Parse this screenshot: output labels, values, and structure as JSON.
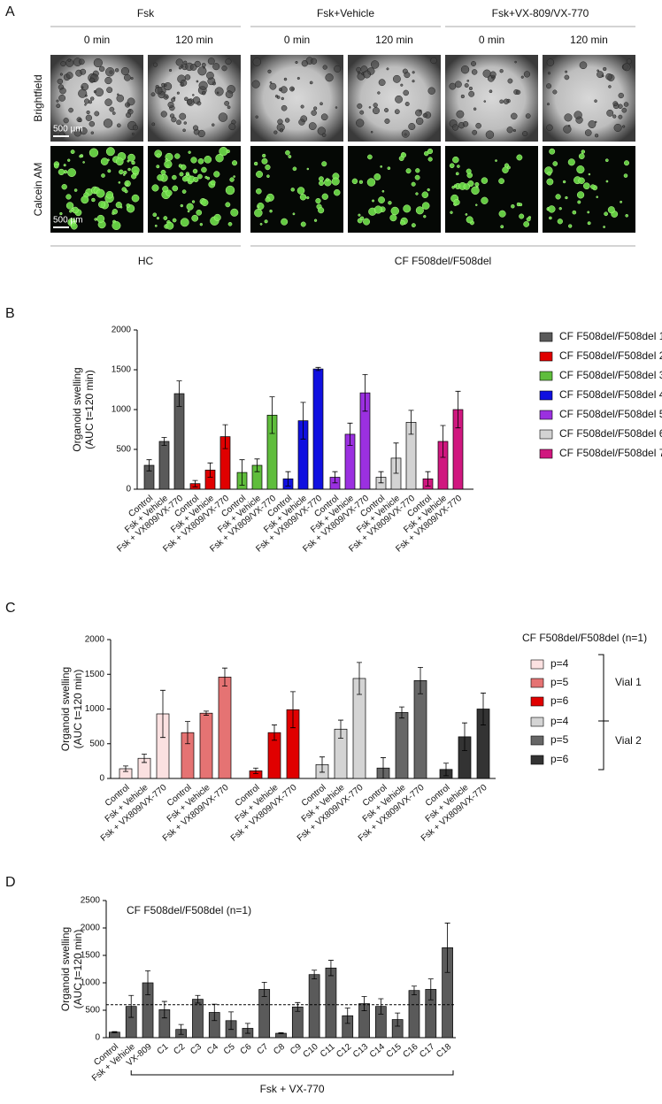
{
  "panel_a": {
    "panel": "A",
    "conditions": [
      "Fsk",
      "Fsk+Vehicle",
      "Fsk+VX-809/VX-770"
    ],
    "timepoints": [
      "0 min",
      "120 min"
    ],
    "rows": [
      "Brightfield",
      "Calcein AM"
    ],
    "scale_bar": "500 µm",
    "groups": [
      "HC",
      "CF F508del/F508del"
    ]
  },
  "chart_data": [
    {
      "type": "bar",
      "panel": "B",
      "ylabel": [
        "Organoid swelling",
        "(AUC t=120 min)"
      ],
      "categories": [
        "Control",
        "Fsk + Vehicle",
        "Fsk + VX809/VX-770"
      ],
      "series": [
        {
          "name": "CF F508del/F508del 1",
          "color": "#5a5a5a",
          "values": [
            300,
            600,
            1200
          ],
          "errors": [
            70,
            50,
            160
          ]
        },
        {
          "name": "CF F508del/F508del 2",
          "color": "#e00000",
          "values": [
            70,
            240,
            660
          ],
          "errors": [
            40,
            90,
            150
          ]
        },
        {
          "name": "CF F508del/F508del 3",
          "color": "#5fbd3c",
          "values": [
            210,
            300,
            930
          ],
          "errors": [
            160,
            80,
            230
          ]
        },
        {
          "name": "CF F508del/F508del 4",
          "color": "#1010e0",
          "values": [
            130,
            860,
            1510
          ],
          "errors": [
            90,
            230,
            20
          ]
        },
        {
          "name": "CF F508del/F508del 5",
          "color": "#9b30e0",
          "values": [
            150,
            690,
            1210
          ],
          "errors": [
            70,
            140,
            230
          ]
        },
        {
          "name": "CF F508del/F508del 6",
          "color": "#d3d3d3",
          "values": [
            150,
            390,
            840
          ],
          "errors": [
            70,
            190,
            150
          ]
        },
        {
          "name": "CF F508del/F508del 7",
          "color": "#d0177f",
          "values": [
            130,
            600,
            1000
          ],
          "errors": [
            90,
            200,
            230
          ]
        }
      ],
      "ylim": [
        0,
        2000
      ],
      "yticks": [
        0,
        500,
        1000,
        1500,
        2000
      ],
      "legend": "right"
    },
    {
      "type": "bar",
      "panel": "C",
      "ylabel": [
        "Organoid swelling",
        "(AUC t=120 min)"
      ],
      "categories": [
        "Control",
        "Fsk + Vehicle",
        "Fsk + VX809/VX-770"
      ],
      "legend_title": "CF F508del/F508del (n=1)",
      "legend_groups": [
        "Vial 1",
        "Vial 2"
      ],
      "series": [
        {
          "name": "p=4",
          "color": "#fbe1e1",
          "values": [
            140,
            290,
            930
          ],
          "errors": [
            40,
            60,
            340
          ]
        },
        {
          "name": "p=5",
          "color": "#e57373",
          "values": [
            660,
            940,
            1460
          ],
          "errors": [
            160,
            30,
            130
          ]
        },
        {
          "name": "p=6",
          "color": "#e00000",
          "values": [
            110,
            660,
            990
          ],
          "errors": [
            40,
            110,
            260
          ]
        },
        {
          "name": "p=4",
          "color": "#d4d4d4",
          "values": [
            200,
            710,
            1440
          ],
          "errors": [
            110,
            130,
            230
          ]
        },
        {
          "name": "p=5",
          "color": "#666666",
          "values": [
            150,
            950,
            1410
          ],
          "errors": [
            150,
            80,
            190
          ]
        },
        {
          "name": "p=6",
          "color": "#333333",
          "values": [
            130,
            600,
            1000
          ],
          "errors": [
            90,
            200,
            230
          ]
        }
      ],
      "ylim": [
        0,
        2000
      ],
      "yticks": [
        0,
        500,
        1000,
        1500,
        2000
      ],
      "legend": "right"
    },
    {
      "type": "bar",
      "panel": "D",
      "ylabel": [
        "Organoid swelling",
        "(AUC t=120 min)"
      ],
      "annotation": "CF F508del/F508del (n=1)",
      "bracket_label": "Fsk + VX-770",
      "categories": [
        "Control",
        "Fsk + Vehicle",
        "VX-809",
        "C1",
        "C2",
        "C3",
        "C4",
        "C5",
        "C6",
        "C7",
        "C8",
        "C9",
        "C10",
        "C11",
        "C12",
        "C13",
        "C14",
        "C15",
        "C16",
        "C17",
        "C18"
      ],
      "values": [
        100,
        570,
        1000,
        510,
        150,
        700,
        460,
        310,
        170,
        880,
        80,
        560,
        1150,
        1270,
        400,
        620,
        570,
        330,
        860,
        880,
        1640
      ],
      "errors": [
        10,
        200,
        220,
        150,
        90,
        70,
        150,
        160,
        90,
        130,
        10,
        80,
        80,
        140,
        140,
        130,
        140,
        120,
        80,
        190,
        450
      ],
      "color": "#5a5a5a",
      "hline": 600,
      "ylim": [
        0,
        2500
      ],
      "yticks": [
        0,
        500,
        1000,
        1500,
        2000,
        2500
      ]
    }
  ]
}
